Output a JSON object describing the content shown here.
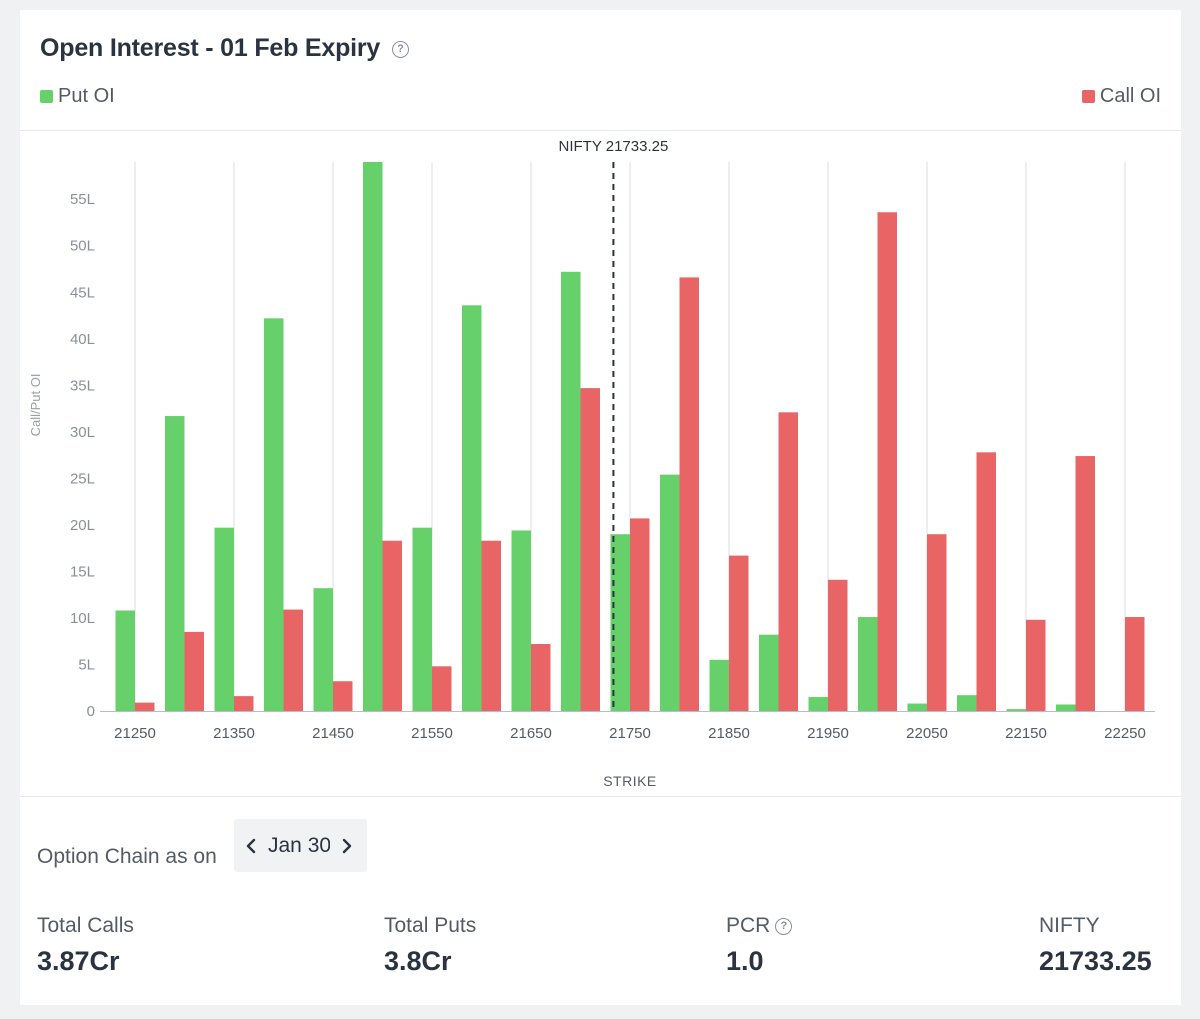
{
  "header": {
    "title": "Open Interest - 01 Feb Expiry",
    "help_glyph": "?",
    "legend": {
      "put_label": "Put OI",
      "call_label": "Call OI"
    }
  },
  "colors": {
    "put": "#66d16a",
    "call": "#e96565",
    "text_dark": "#2b3340",
    "text_muted": "#545b66",
    "grid": "#d9dce0"
  },
  "chart_data": {
    "type": "bar",
    "title": "Open Interest - 01 Feb Expiry",
    "xlabel": "STRIKE",
    "ylabel": "Call/Put OI",
    "ylim": [
      0,
      59
    ],
    "y_unit": "L",
    "y_ticks": [
      0,
      5,
      10,
      15,
      20,
      25,
      30,
      35,
      40,
      45,
      50,
      55
    ],
    "y_tick_labels": [
      "0",
      "5L",
      "10L",
      "15L",
      "20L",
      "25L",
      "30L",
      "35L",
      "40L",
      "45L",
      "50L",
      "55L"
    ],
    "grid": true,
    "legend_position": "top",
    "categories": [
      21250,
      21300,
      21350,
      21400,
      21450,
      21500,
      21550,
      21600,
      21650,
      21700,
      21750,
      21800,
      21850,
      21900,
      21950,
      22000,
      22050,
      22100,
      22150,
      22200,
      22250
    ],
    "x_tick_labels": [
      "21250",
      "21350",
      "21450",
      "21550",
      "21650",
      "21750",
      "21850",
      "21950",
      "22050",
      "22150",
      "22250"
    ],
    "series": [
      {
        "name": "Put OI",
        "values": [
          10.8,
          31.7,
          19.7,
          42.2,
          13.2,
          59,
          19.7,
          43.6,
          19.4,
          47.2,
          19,
          25.4,
          5.5,
          8.2,
          1.5,
          10.1,
          0.8,
          1.7,
          0.2,
          0.7,
          0
        ]
      },
      {
        "name": "Call OI",
        "values": [
          0.9,
          8.5,
          1.6,
          10.9,
          3.2,
          18.3,
          4.8,
          18.3,
          7.2,
          34.7,
          20.7,
          46.6,
          16.7,
          32.1,
          14.1,
          53.6,
          19,
          27.8,
          9.8,
          27.4,
          10.1
        ]
      }
    ],
    "annotations": [
      {
        "type": "vline",
        "x": 21733.25,
        "label": "NIFTY 21733.25"
      }
    ]
  },
  "footer": {
    "chain_label": "Option Chain as on",
    "date_value": "Jan 30",
    "stats": {
      "total_calls_label": "Total Calls",
      "total_calls_value": "3.87Cr",
      "total_puts_label": "Total Puts",
      "total_puts_value": "3.8Cr",
      "pcr_label": "PCR",
      "pcr_value": "1.0",
      "nifty_label": "NIFTY",
      "nifty_value": "21733.25"
    }
  }
}
